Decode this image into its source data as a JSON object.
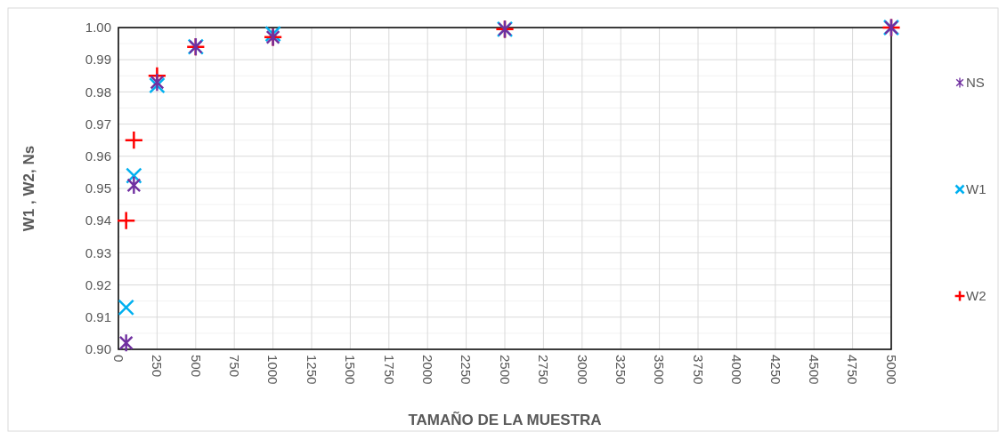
{
  "chart_data": {
    "type": "scatter",
    "xlabel": "TAMAÑO DE LA MUESTRA",
    "ylabel": "W1 , W2, Ns",
    "x": [
      50,
      100,
      250,
      500,
      1000,
      2500,
      5000
    ],
    "series": [
      {
        "name": "NS",
        "color": "#7030a0",
        "values": [
          0.902,
          0.951,
          0.983,
          0.994,
          0.997,
          0.9995,
          1.0
        ]
      },
      {
        "name": "W1",
        "color": "#00b0f0",
        "marker": "cross",
        "values": [
          0.913,
          0.954,
          0.982,
          0.994,
          0.998,
          0.9995,
          1.0
        ]
      },
      {
        "name": "W2",
        "color": "#ff0000",
        "marker": "plus",
        "values": [
          0.94,
          0.965,
          0.985,
          0.994,
          0.997,
          0.9995,
          1.0
        ]
      }
    ],
    "xlim": [
      0,
      5000
    ],
    "xticks": [
      0,
      250,
      500,
      750,
      1000,
      1250,
      1500,
      1750,
      2000,
      2250,
      2500,
      2750,
      3000,
      3250,
      3500,
      3750,
      4000,
      4250,
      4500,
      4750,
      5000
    ],
    "ylim": [
      0.9,
      1.0
    ],
    "yticks": [
      {
        "value": 0.9,
        "label": "0.90"
      },
      {
        "value": 0.91,
        "label": "0.91"
      },
      {
        "value": 0.92,
        "label": "0.92"
      },
      {
        "value": 0.93,
        "label": "0.93"
      },
      {
        "value": 0.94,
        "label": "0.94"
      },
      {
        "value": 0.95,
        "label": "0.95"
      },
      {
        "value": 0.96,
        "label": "0.96"
      },
      {
        "value": 0.97,
        "label": "0.97"
      },
      {
        "value": 0.98,
        "label": "0.98"
      },
      {
        "value": 0.99,
        "label": "0.99"
      },
      {
        "value": 1.0,
        "label": "1.00"
      }
    ],
    "grid": true,
    "legend": "right"
  }
}
